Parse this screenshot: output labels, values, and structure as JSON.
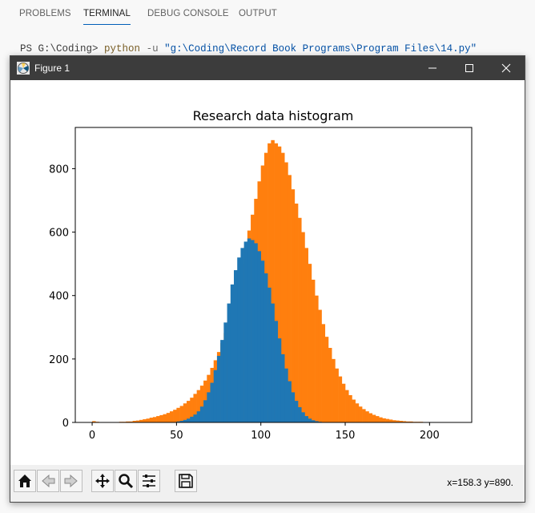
{
  "vscode": {
    "tabs": [
      "PROBLEMS",
      "TERMINAL",
      "DEBUG CONSOLE",
      "OUTPUT"
    ],
    "active_tab": "TERMINAL",
    "terminal": {
      "prompt": "PS G:\\Coding>",
      "command": "python",
      "flag": "-u",
      "path": "\"g:\\Coding\\Record Book Programs\\Program Files\\14.py\""
    }
  },
  "figure_window": {
    "title": "Figure 1",
    "icons": {
      "app": "matplotlib-figure-icon",
      "minimize": "minimize-icon",
      "maximize": "maximize-icon",
      "close": "close-icon"
    },
    "toolbar": {
      "buttons": [
        "home-icon",
        "back-arrow-icon",
        "forward-arrow-icon",
        "pan-icon",
        "zoom-icon",
        "configure-subplots-icon",
        "save-icon"
      ],
      "coordinates": "x=158.3 y=890."
    }
  },
  "chart_data": {
    "type": "bar",
    "title": "Research data histogram",
    "xlabel": "",
    "ylabel": "",
    "xlim": [
      -10,
      225
    ],
    "ylim": [
      0,
      930
    ],
    "xticks": [
      0,
      50,
      100,
      150,
      200
    ],
    "yticks": [
      0,
      200,
      400,
      600,
      800
    ],
    "grid": false,
    "stacked": true,
    "colors": [
      "#1f77b4",
      "#ff7f0e"
    ],
    "series": [
      {
        "name": "",
        "color": "#1f77b4",
        "bin_start": 50,
        "bin_width": 2,
        "values": [
          3,
          5,
          8,
          12,
          18,
          25,
          35,
          50,
          70,
          95,
          125,
          165,
          210,
          260,
          315,
          375,
          435,
          480,
          520,
          550,
          570,
          580,
          575,
          565,
          540,
          510,
          470,
          425,
          375,
          320,
          265,
          215,
          170,
          130,
          95,
          68,
          48,
          32,
          20,
          12,
          7,
          4,
          2,
          1
        ]
      },
      {
        "name": "",
        "color": "#ff7f0e",
        "bin_start": -4,
        "bin_width": 2,
        "totals": [
          0,
          0,
          4,
          2,
          0,
          0,
          0,
          0,
          0,
          0,
          2,
          2,
          3,
          3,
          5,
          6,
          8,
          10,
          12,
          15,
          17,
          20,
          23,
          26,
          30,
          35,
          40,
          46,
          52,
          60,
          68,
          78,
          90,
          102,
          116,
          132,
          150,
          172,
          196,
          222,
          250,
          282,
          318,
          358,
          400,
          448,
          500,
          555,
          605,
          655,
          705,
          760,
          810,
          850,
          880,
          890,
          880,
          870,
          850,
          820,
          780,
          735,
          690,
          645,
          600,
          550,
          500,
          450,
          400,
          355,
          310,
          270,
          235,
          200,
          170,
          145,
          122,
          102,
          86,
          72,
          60,
          50,
          42,
          35,
          29,
          24,
          20,
          16,
          13,
          11,
          9,
          7,
          6,
          5,
          4,
          3,
          3,
          2,
          2,
          2,
          1,
          1,
          1,
          1,
          1,
          0,
          0,
          0,
          0,
          1
        ]
      }
    ]
  }
}
